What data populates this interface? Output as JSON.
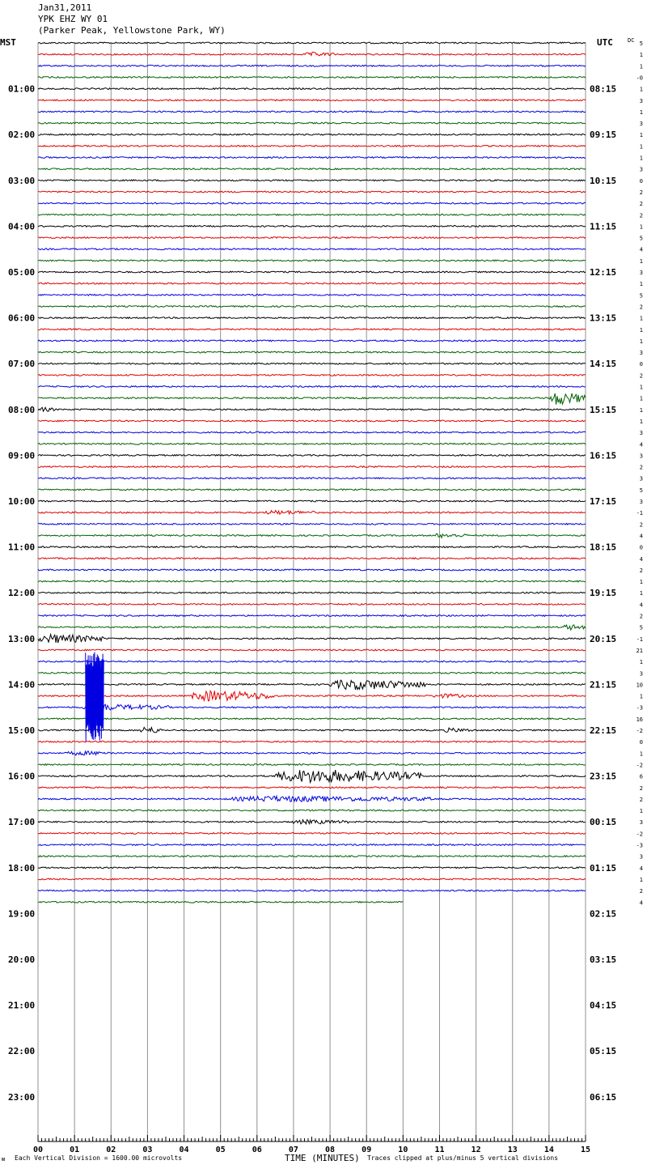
{
  "header": {
    "date": "Jan31,2011",
    "station": "YPK EHZ WY 01",
    "location": "(Parker Peak, Yellowstone Park, WY)"
  },
  "left_zone": "MST",
  "right_zone": "UTC",
  "dc_header": "DC",
  "footer": {
    "scale_note": "Each Vertical Division = 1600.00 microvolts",
    "clip_note": "Traces clipped at plus/minus 5 vertical divisions",
    "x_label": "TIME (MINUTES)",
    "logo": "ᴍ"
  },
  "colors": [
    "#000000",
    "#e00000",
    "#0000e0",
    "#006000"
  ],
  "chart_data": {
    "type": "line",
    "title": "YPK EHZ WY 01",
    "xlabel": "TIME (MINUTES)",
    "xlim": [
      0,
      15
    ],
    "x_ticks": [
      "00",
      "01",
      "02",
      "03",
      "04",
      "05",
      "06",
      "07",
      "08",
      "09",
      "10",
      "11",
      "12",
      "13",
      "14",
      "15"
    ],
    "left_hours": [
      "01:00",
      "02:00",
      "03:00",
      "04:00",
      "05:00",
      "06:00",
      "07:00",
      "08:00",
      "09:00",
      "10:00",
      "11:00",
      "12:00",
      "13:00",
      "14:00",
      "15:00",
      "16:00",
      "17:00",
      "18:00",
      "19:00",
      "20:00",
      "21:00",
      "22:00",
      "23:00"
    ],
    "right_hours": [
      "08:15",
      "09:15",
      "10:15",
      "11:15",
      "12:15",
      "13:15",
      "14:15",
      "15:15",
      "16:15",
      "17:15",
      "18:15",
      "19:15",
      "20:15",
      "21:15",
      "22:15",
      "23:15",
      "00:15",
      "01:15",
      "02:15",
      "03:15",
      "04:15",
      "05:15",
      "06:15"
    ],
    "dc_offsets": [
      "5",
      "1",
      "1",
      "-0",
      "1",
      "3",
      "1",
      "3",
      "1",
      "1",
      "1",
      "3",
      "0",
      "2",
      "2",
      "2",
      "1",
      "5",
      "4",
      "1",
      "3",
      "1",
      "5",
      "2",
      "1",
      "1",
      "1",
      "3",
      "0",
      "2",
      "1",
      "1",
      "1",
      "1",
      "3",
      "4",
      "3",
      "2",
      "3",
      "5",
      "3",
      "-1",
      "2",
      "4",
      "0",
      "4",
      "2",
      "1",
      "1",
      "4",
      "2",
      "5",
      "-1",
      "21",
      "1",
      "3",
      "10",
      "1",
      "-3",
      "16",
      "-2",
      "0",
      "1",
      "-2",
      "6",
      "2",
      "2",
      "1",
      "3",
      "-2",
      "-3",
      "3",
      "4",
      "1",
      "2",
      "4"
    ],
    "trace_count": 76,
    "last_trace_end_minute": 10,
    "events": [
      {
        "trace": 1,
        "start": 7.3,
        "end": 8.1,
        "amp": 2
      },
      {
        "trace": 31,
        "start": 14.0,
        "end": 15.0,
        "amp": 8
      },
      {
        "trace": 32,
        "start": 0.0,
        "end": 0.5,
        "amp": 2
      },
      {
        "trace": 41,
        "start": 6.2,
        "end": 7.6,
        "amp": 2
      },
      {
        "trace": 43,
        "start": 10.8,
        "end": 11.8,
        "amp": 2
      },
      {
        "trace": 51,
        "start": 14.4,
        "end": 15.0,
        "amp": 3
      },
      {
        "trace": 52,
        "start": 0.0,
        "end": 1.8,
        "amp": 5
      },
      {
        "trace": 56,
        "start": 8.0,
        "end": 10.6,
        "amp": 6
      },
      {
        "trace": 57,
        "start": 4.2,
        "end": 6.5,
        "amp": 6
      },
      {
        "trace": 57,
        "start": 10.8,
        "end": 11.8,
        "amp": 2
      },
      {
        "trace": 58,
        "start": 1.2,
        "end": 3.6,
        "amp": 3
      },
      {
        "trace": 60,
        "start": 2.8,
        "end": 3.4,
        "amp": 4
      },
      {
        "trace": 60,
        "start": 11.1,
        "end": 11.9,
        "amp": 2
      },
      {
        "trace": 62,
        "start": 0.8,
        "end": 2.1,
        "amp": 2
      },
      {
        "trace": 64,
        "start": 6.5,
        "end": 10.5,
        "amp": 8
      },
      {
        "trace": 66,
        "start": 5.3,
        "end": 10.8,
        "amp": 3
      },
      {
        "trace": 68,
        "start": 6.9,
        "end": 8.5,
        "amp": 2
      }
    ],
    "big_event": {
      "start_trace": 53,
      "end_trace": 61,
      "start": 1.3,
      "end": 1.8
    }
  }
}
